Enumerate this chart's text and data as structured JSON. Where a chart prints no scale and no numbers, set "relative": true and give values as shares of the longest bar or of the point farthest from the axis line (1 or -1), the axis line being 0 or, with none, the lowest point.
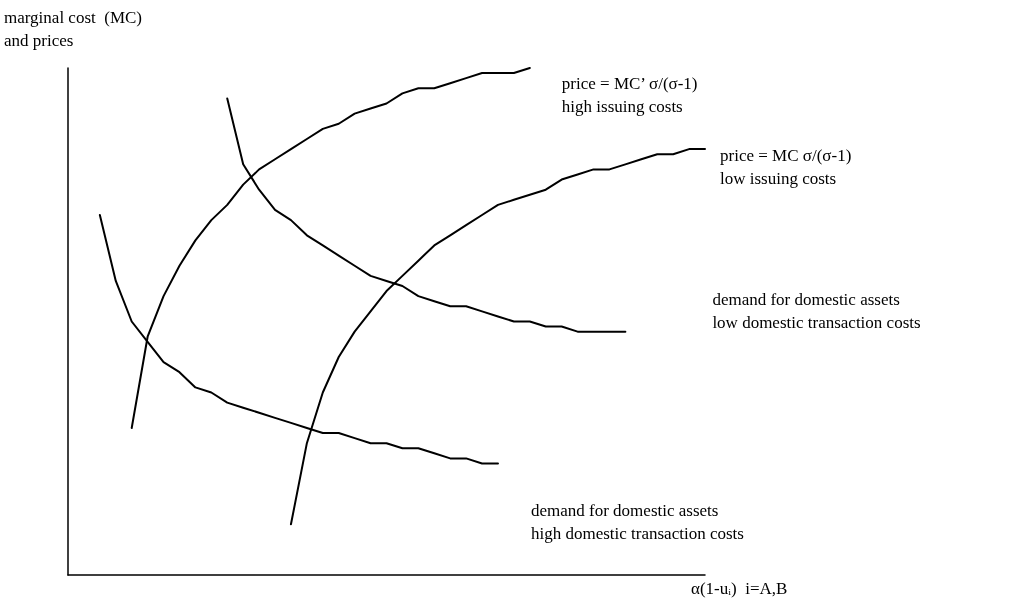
{
  "chart_data": {
    "type": "line",
    "relative": true,
    "xlabel": "α(1-uᵢ)  i=A,B",
    "ylabel": "marginal cost  (MC)\nand prices",
    "marker": "none",
    "categories": [
      null,
      null,
      null,
      null,
      null,
      null,
      null,
      null,
      null,
      null,
      null,
      null,
      null,
      null,
      null,
      null,
      null,
      null,
      null,
      null,
      null,
      null,
      null,
      null,
      null,
      null,
      null,
      null,
      null,
      null,
      null,
      null,
      null,
      null,
      null,
      null,
      null,
      null,
      null,
      null,
      null
    ],
    "series": [
      {
        "color": "#000000",
        "values": [
          null,
          null,
          null,
          null,
          0.29,
          0.47,
          0.55,
          0.61,
          0.66,
          0.7,
          0.73,
          0.77,
          0.8,
          0.82,
          0.84,
          0.86,
          0.88,
          0.89,
          0.91,
          0.92,
          0.93,
          0.95,
          0.96,
          0.96,
          0.97,
          0.98,
          0.99,
          0.99,
          0.99,
          1,
          null,
          null,
          null,
          null,
          null,
          null,
          null,
          null,
          null,
          null,
          null
        ]
      },
      {
        "color": "#000000",
        "values": [
          null,
          null,
          null,
          null,
          null,
          null,
          null,
          null,
          null,
          null,
          null,
          null,
          null,
          null,
          0.1,
          0.26,
          0.36,
          0.43,
          0.48,
          0.52,
          0.56,
          0.59,
          0.62,
          0.65,
          0.67,
          0.69,
          0.71,
          0.73,
          0.74,
          0.75,
          0.76,
          0.78,
          0.79,
          0.8,
          0.8,
          0.81,
          0.82,
          0.83,
          0.83,
          0.84,
          0.84
        ]
      },
      {
        "color": "#000000",
        "values": [
          null,
          null,
          null,
          null,
          null,
          null,
          null,
          null,
          null,
          null,
          0.94,
          0.81,
          0.76,
          0.72,
          0.7,
          0.67,
          0.65,
          0.63,
          0.61,
          0.59,
          0.58,
          0.57,
          0.55,
          0.54,
          0.53,
          0.53,
          0.52,
          0.51,
          0.5,
          0.5,
          0.49,
          0.49,
          0.48,
          0.48,
          0.48,
          0.48,
          null,
          null,
          null,
          null,
          null
        ]
      },
      {
        "color": "#000000",
        "values": [
          null,
          null,
          0.71,
          0.58,
          0.5,
          0.46,
          0.42,
          0.4,
          0.37,
          0.36,
          0.34,
          0.33,
          0.32,
          0.31,
          0.3,
          0.29,
          0.28,
          0.28,
          0.27,
          0.26,
          0.26,
          0.25,
          0.25,
          0.24,
          0.23,
          0.23,
          0.22,
          0.22,
          null,
          null,
          null,
          null,
          null,
          null,
          null,
          null,
          null,
          null,
          null,
          null,
          null
        ]
      }
    ],
    "annotations": [
      "price = MC’ σ/(σ-1)\nhigh issuing costs",
      "price = MC σ/(σ-1)\nlow issuing costs",
      "demand for domestic assets\nlow domestic transaction costs",
      "demand for domestic assets\nhigh domestic transaction costs"
    ]
  }
}
